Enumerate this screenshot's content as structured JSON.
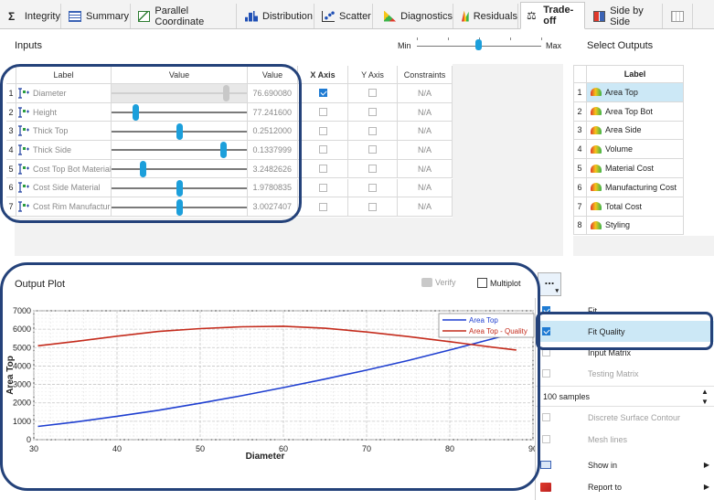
{
  "tabs": [
    {
      "label": "Integrity",
      "icon": "sigma-icon"
    },
    {
      "label": "Summary",
      "icon": "table-icon"
    },
    {
      "label": "Parallel Coordinate",
      "icon": "parallel-coordinate-icon"
    },
    {
      "label": "Distribution",
      "icon": "histogram-icon"
    },
    {
      "label": "Scatter",
      "icon": "scatter-icon"
    },
    {
      "label": "Diagnostics",
      "icon": "diagnostics-icon"
    },
    {
      "label": "Residuals",
      "icon": "residuals-icon"
    },
    {
      "label": "Trade-off",
      "icon": "scale-icon"
    },
    {
      "label": "Side by Side",
      "icon": "side-by-side-icon"
    },
    {
      "label": "",
      "icon": "grid-icon"
    }
  ],
  "active_tab": "Trade-off",
  "inputs": {
    "title": "Inputs",
    "slider_min": "Min",
    "slider_max": "Max",
    "columns": [
      "Label",
      "Value",
      "Value",
      "X Axis",
      "Y Axis",
      "Constraints"
    ],
    "rows": [
      {
        "num": "1",
        "label": "Diameter",
        "value": "76.690080",
        "x_axis": true,
        "y_axis": false,
        "constraints": "N/A",
        "slider_pos": 0.86
      },
      {
        "num": "2",
        "label": "Height",
        "value": "77.241600",
        "x_axis": false,
        "y_axis": false,
        "constraints": "N/A",
        "slider_pos": 0.16
      },
      {
        "num": "3",
        "label": "Thick Top",
        "value": "0.2512000",
        "x_axis": false,
        "y_axis": false,
        "constraints": "N/A",
        "slider_pos": 0.5
      },
      {
        "num": "4",
        "label": "Thick Side",
        "value": "0.1337999",
        "x_axis": false,
        "y_axis": false,
        "constraints": "N/A",
        "slider_pos": 0.84
      },
      {
        "num": "5",
        "label": "Cost Top Bot Material",
        "value": "3.2482626",
        "x_axis": false,
        "y_axis": false,
        "constraints": "N/A",
        "slider_pos": 0.22
      },
      {
        "num": "6",
        "label": "Cost Side Material",
        "value": "1.9780835",
        "x_axis": false,
        "y_axis": false,
        "constraints": "N/A",
        "slider_pos": 0.5
      },
      {
        "num": "7",
        "label": "Cost Rim Manufacturing",
        "value": "3.0027407",
        "x_axis": false,
        "y_axis": false,
        "constraints": "N/A",
        "slider_pos": 0.5
      }
    ]
  },
  "outputs": {
    "title": "Select Outputs",
    "column": "Label",
    "rows": [
      {
        "num": "1",
        "label": "Area Top",
        "selected": true
      },
      {
        "num": "2",
        "label": "Area Top Bot"
      },
      {
        "num": "3",
        "label": "Area Side"
      },
      {
        "num": "4",
        "label": "Volume"
      },
      {
        "num": "5",
        "label": "Material Cost"
      },
      {
        "num": "6",
        "label": "Manufacturing Cost"
      },
      {
        "num": "7",
        "label": "Total Cost"
      },
      {
        "num": "8",
        "label": "Styling"
      }
    ]
  },
  "plot": {
    "title": "Output Plot",
    "verify_label": "Verify",
    "multiplot_label": "Multiplot",
    "more_label": "..."
  },
  "menu": {
    "items": [
      {
        "label": "Fit",
        "checkbox": true,
        "checked": true,
        "disabled": false
      },
      {
        "label": "Fit Quality",
        "checkbox": true,
        "checked": true,
        "disabled": false,
        "highlight": true
      },
      {
        "label": "Input Matrix",
        "checkbox": true,
        "checked": false,
        "disabled": false
      },
      {
        "label": "Testing Matrix",
        "checkbox": true,
        "checked": false,
        "disabled": true
      },
      {
        "label": "100 samples",
        "spinner": true
      },
      {
        "label": "Discrete Surface Contour",
        "checkbox": true,
        "checked": false,
        "disabled": true
      },
      {
        "label": "Mesh lines",
        "checkbox": true,
        "checked": false,
        "disabled": true
      },
      {
        "label": "Show in",
        "submenu": true,
        "icon": "monitor-icon"
      },
      {
        "label": "Report to",
        "submenu": true,
        "icon": "report-icon"
      }
    ]
  },
  "chart_data": {
    "type": "line",
    "title": "",
    "xlabel": "Diameter",
    "ylabel": "Area Top",
    "xlim": [
      30,
      90
    ],
    "ylim": [
      0,
      7000
    ],
    "xticks": [
      30,
      40,
      50,
      60,
      70,
      80,
      90
    ],
    "yticks": [
      0,
      1000,
      2000,
      3000,
      4000,
      5000,
      6000,
      7000
    ],
    "grid": true,
    "legend": "top-right",
    "series": [
      {
        "name": "Area Top",
        "color": "#1f3fd0",
        "x": [
          30.5,
          35,
          40,
          45,
          50,
          55,
          60,
          65,
          70,
          75,
          80,
          85,
          88
        ],
        "y": [
          720,
          960,
          1270,
          1600,
          1980,
          2390,
          2830,
          3290,
          3780,
          4300,
          4870,
          5460,
          5820
        ]
      },
      {
        "name": "Area Top - Quality",
        "color": "#c42b1c",
        "x": [
          30.5,
          35,
          40,
          45,
          50,
          55,
          60,
          65,
          70,
          75,
          80,
          85,
          88
        ],
        "y": [
          5100,
          5330,
          5620,
          5880,
          6030,
          6130,
          6160,
          6050,
          5850,
          5600,
          5320,
          5030,
          4870
        ]
      }
    ]
  }
}
